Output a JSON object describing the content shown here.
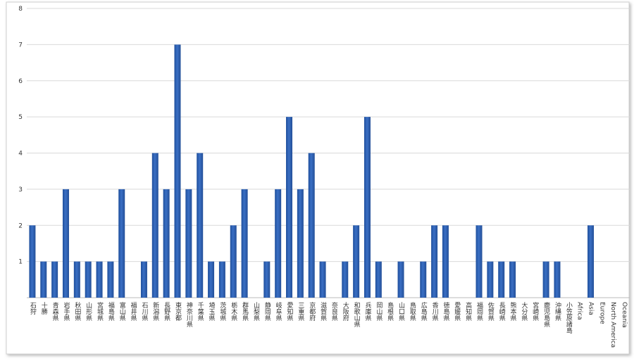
{
  "chart_data": {
    "type": "bar",
    "categories": [
      "石狩",
      "十勝",
      "青森県",
      "岩手県",
      "秋田県",
      "山形県",
      "宮城県",
      "福島県",
      "富山県",
      "福井県",
      "石川県",
      "新潟県",
      "長野県",
      "東京都",
      "神奈川県",
      "千葉県",
      "埼玉県",
      "茨城県",
      "栃木県",
      "群馬県",
      "山梨県",
      "静岡県",
      "岐阜県",
      "愛知県",
      "三重県",
      "京都府",
      "滋賀県",
      "奈良県",
      "大阪府",
      "和歌山県",
      "兵庫県",
      "岡山県",
      "島根県",
      "山口県",
      "鳥取県",
      "広島県",
      "香川県",
      "徳島県",
      "愛媛県",
      "高知県",
      "福岡県",
      "佐賀県",
      "長崎県",
      "熊本県",
      "大分県",
      "宮崎県",
      "鹿児島県",
      "沖縄県",
      "小笠原諸島",
      "Africa",
      "Asia",
      "Europe",
      "North America",
      "Oceania"
    ],
    "values": [
      2,
      1,
      1,
      3,
      1,
      1,
      1,
      1,
      3,
      0,
      1,
      4,
      3,
      7,
      3,
      4,
      1,
      1,
      2,
      3,
      0,
      1,
      3,
      5,
      3,
      4,
      1,
      0,
      1,
      2,
      5,
      1,
      0,
      1,
      0,
      1,
      2,
      2,
      0,
      0,
      2,
      1,
      1,
      1,
      0,
      0,
      1,
      1,
      0,
      0,
      2,
      0,
      0,
      0
    ],
    "color": "#3a6fc4",
    "ylim": [
      0,
      8
    ],
    "yticks": [
      1,
      2,
      3,
      4,
      5,
      6,
      7,
      8
    ],
    "grid": true
  }
}
